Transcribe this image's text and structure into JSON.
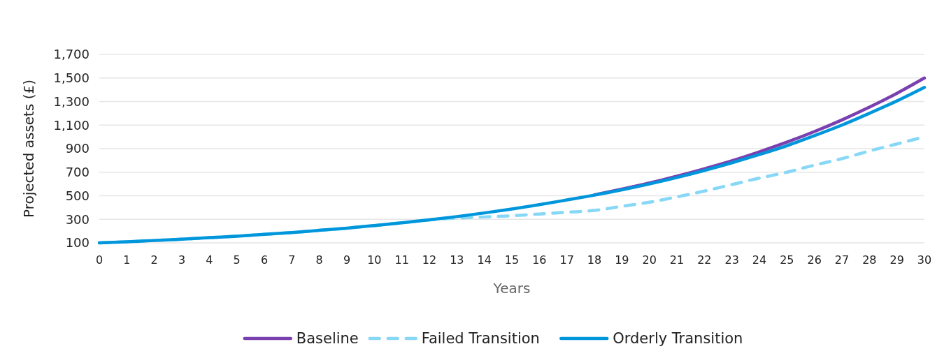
{
  "chart_data": {
    "type": "line",
    "xlabel": "Years",
    "ylabel": "Projected assets (£)",
    "x": [
      0,
      1,
      2,
      3,
      4,
      5,
      6,
      7,
      8,
      9,
      10,
      11,
      12,
      13,
      14,
      15,
      16,
      17,
      18,
      19,
      20,
      21,
      22,
      23,
      24,
      25,
      26,
      27,
      28,
      29,
      30
    ],
    "series": [
      {
        "name": "Baseline",
        "color": "#7b40b0",
        "values": [
          null,
          null,
          null,
          null,
          null,
          null,
          null,
          null,
          null,
          null,
          null,
          null,
          null,
          null,
          null,
          null,
          null,
          null,
          508,
          556,
          608,
          666,
          729,
          797,
          873,
          955,
          1045,
          1144,
          1252,
          1370,
          1500
        ]
      },
      {
        "name": "Failed Transition",
        "color": "#87d8f7",
        "line_style": "dashed",
        "values": [
          100,
          109,
          120,
          131,
          144,
          157,
          172,
          188,
          206,
          225,
          247,
          270,
          295,
          310,
          320,
          330,
          345,
          360,
          375,
          410,
          445,
          490,
          540,
          595,
          650,
          700,
          760,
          815,
          880,
          940,
          1000
        ]
      },
      {
        "name": "Orderly Transition",
        "color": "#0096db",
        "values": [
          100,
          109,
          120,
          131,
          144,
          157,
          172,
          188,
          206,
          225,
          247,
          270,
          295,
          323,
          354,
          387,
          424,
          464,
          505,
          550,
          600,
          655,
          715,
          780,
          850,
          925,
          1010,
          1100,
          1200,
          1305,
          1420
        ]
      }
    ],
    "xlim": [
      0,
      30
    ],
    "xticks": [
      0,
      1,
      2,
      3,
      4,
      5,
      6,
      7,
      8,
      9,
      10,
      11,
      12,
      13,
      14,
      15,
      16,
      17,
      18,
      19,
      20,
      21,
      22,
      23,
      24,
      25,
      26,
      27,
      28,
      29,
      30
    ],
    "ylim": [
      100,
      1700
    ],
    "yticks": [
      {
        "value": 100,
        "label": "100"
      },
      {
        "value": 300,
        "label": "300"
      },
      {
        "value": 500,
        "label": "500"
      },
      {
        "value": 700,
        "label": "700"
      },
      {
        "value": 900,
        "label": "900"
      },
      {
        "value": 1100,
        "label": "1,100"
      },
      {
        "value": 1300,
        "label": "1,300"
      },
      {
        "value": 1500,
        "label": "1,500"
      },
      {
        "value": 1700,
        "label": "1,700"
      }
    ],
    "grid": "y",
    "legend": "bottom",
    "line_style": "solid"
  }
}
